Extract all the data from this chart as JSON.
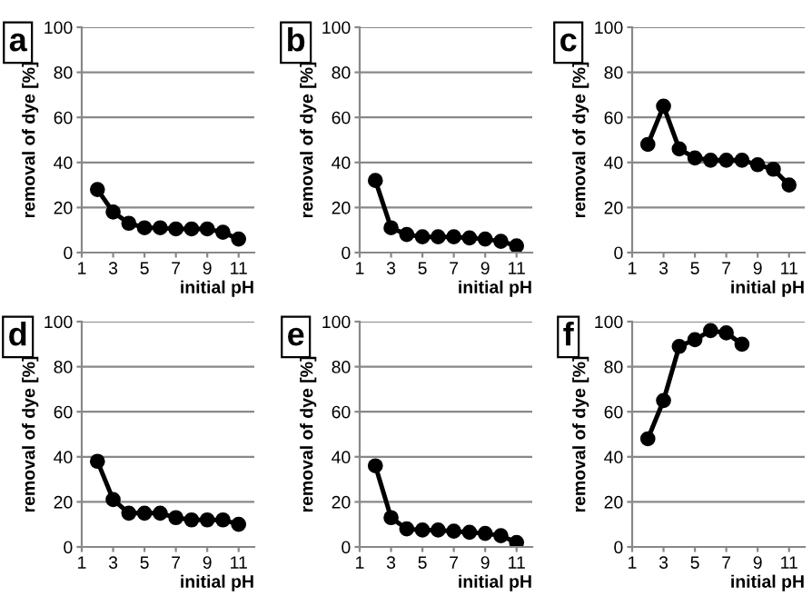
{
  "chart_data": [
    {
      "type": "line",
      "title": "a",
      "xlabel": "initial pH",
      "ylabel": "removal of dye [%]",
      "x": [
        2,
        3,
        4,
        5,
        6,
        7,
        8,
        9,
        10,
        11
      ],
      "series": [
        {
          "color": "#000000",
          "values": [
            28,
            18,
            13,
            11,
            11,
            10.5,
            10.5,
            10.5,
            9,
            6
          ]
        }
      ],
      "xlim": [
        1,
        12
      ],
      "xticks": [
        1,
        3,
        5,
        7,
        9,
        11
      ],
      "ylim": [
        0,
        100
      ],
      "yticks": [
        0,
        20,
        40,
        60,
        80,
        100
      ],
      "grid": "y",
      "marker": "circle",
      "line_style": "solid"
    },
    {
      "type": "line",
      "title": "b",
      "xlabel": "initial pH",
      "ylabel": "removal of dye [%]",
      "x": [
        2,
        3,
        4,
        5,
        6,
        7,
        8,
        9,
        10,
        11
      ],
      "series": [
        {
          "color": "#000000",
          "values": [
            32,
            11,
            8,
            7,
            7,
            7,
            6.5,
            6,
            5,
            3
          ]
        }
      ],
      "xlim": [
        1,
        12
      ],
      "xticks": [
        1,
        3,
        5,
        7,
        9,
        11
      ],
      "ylim": [
        0,
        100
      ],
      "yticks": [
        0,
        20,
        40,
        60,
        80,
        100
      ],
      "grid": "y",
      "marker": "circle",
      "line_style": "solid"
    },
    {
      "type": "line",
      "title": "c",
      "xlabel": "initial pH",
      "ylabel": "removal of dye [%]",
      "x": [
        2,
        3,
        4,
        5,
        6,
        7,
        8,
        9,
        10,
        11
      ],
      "series": [
        {
          "color": "#000000",
          "values": [
            48,
            65,
            46,
            42,
            41,
            41,
            41,
            39,
            37,
            30
          ]
        }
      ],
      "xlim": [
        1,
        12
      ],
      "xticks": [
        1,
        3,
        5,
        7,
        9,
        11
      ],
      "ylim": [
        0,
        100
      ],
      "yticks": [
        0,
        20,
        40,
        60,
        80,
        100
      ],
      "grid": "y",
      "marker": "circle",
      "line_style": "solid"
    },
    {
      "type": "line",
      "title": "d",
      "xlabel": "initial pH",
      "ylabel": "removal of dye [%]",
      "x": [
        2,
        3,
        4,
        5,
        6,
        7,
        8,
        9,
        10,
        11
      ],
      "series": [
        {
          "color": "#000000",
          "values": [
            38,
            21,
            15,
            15,
            15,
            13,
            12,
            12,
            12,
            10
          ]
        }
      ],
      "xlim": [
        1,
        12
      ],
      "xticks": [
        1,
        3,
        5,
        7,
        9,
        11
      ],
      "ylim": [
        0,
        100
      ],
      "yticks": [
        0,
        20,
        40,
        60,
        80,
        100
      ],
      "grid": "y",
      "marker": "circle",
      "line_style": "solid"
    },
    {
      "type": "line",
      "title": "e",
      "xlabel": "initial pH",
      "ylabel": "removal of dye [%]",
      "x": [
        2,
        3,
        4,
        5,
        6,
        7,
        8,
        9,
        10,
        11
      ],
      "series": [
        {
          "color": "#000000",
          "values": [
            36,
            13,
            8,
            7.5,
            7.5,
            7,
            6.5,
            6,
            5,
            2
          ]
        }
      ],
      "xlim": [
        1,
        12
      ],
      "xticks": [
        1,
        3,
        5,
        7,
        9,
        11
      ],
      "ylim": [
        0,
        100
      ],
      "yticks": [
        0,
        20,
        40,
        60,
        80,
        100
      ],
      "grid": "y",
      "marker": "circle",
      "line_style": "solid"
    },
    {
      "type": "line",
      "title": "f",
      "xlabel": "initial pH",
      "ylabel": "removal of dye [%]",
      "x": [
        2,
        3,
        4,
        5,
        6,
        7,
        8
      ],
      "series": [
        {
          "color": "#000000",
          "values": [
            48,
            65,
            89,
            92,
            96,
            95,
            90
          ]
        }
      ],
      "xlim": [
        1,
        12
      ],
      "xticks": [
        1,
        3,
        5,
        7,
        9,
        11
      ],
      "ylim": [
        0,
        100
      ],
      "yticks": [
        0,
        20,
        40,
        60,
        80,
        100
      ],
      "grid": "y",
      "marker": "circle",
      "line_style": "solid"
    }
  ]
}
